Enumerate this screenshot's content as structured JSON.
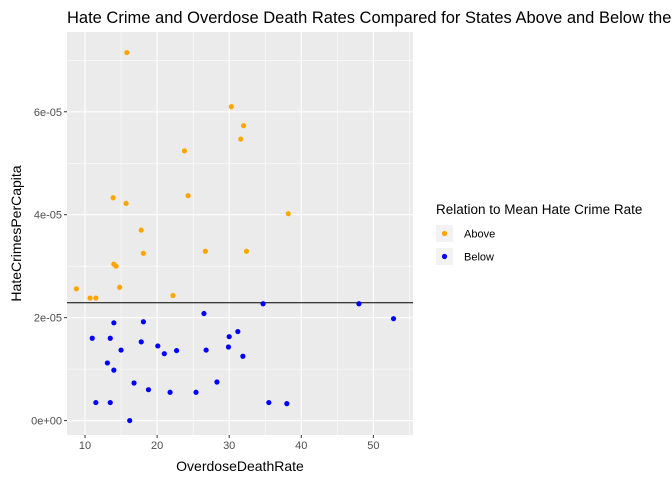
{
  "chart_data": {
    "type": "scatter",
    "title": "Hate Crime and Overdose Death Rates Compared for States Above and Below the Mean",
    "xlabel": "OverdoseDeathRate",
    "ylabel": "HateCrimesPerCapita",
    "xlim": [
      7.5,
      55.5
    ],
    "ylim": [
      -2.8e-06,
      7.55e-05
    ],
    "x_ticks": [
      10,
      20,
      30,
      40,
      50
    ],
    "x_tick_labels": [
      "10",
      "20",
      "30",
      "40",
      "50"
    ],
    "y_ticks": [
      0,
      2e-05,
      4e-05,
      6e-05
    ],
    "y_tick_labels": [
      "0e+00",
      "2e-05",
      "4e-05",
      "6e-05"
    ],
    "grid": true,
    "reference_line": {
      "y": 2.29e-05
    },
    "legend": {
      "title": "Relation to Mean Hate Crime Rate",
      "placement": "right"
    },
    "series": [
      {
        "name": "Above",
        "color": "#FFA500",
        "points": [
          [
            15.8,
            7.15e-05
          ],
          [
            30.3,
            6.1e-05
          ],
          [
            32.0,
            5.73e-05
          ],
          [
            31.6,
            5.47e-05
          ],
          [
            23.8,
            5.24e-05
          ],
          [
            24.3,
            4.37e-05
          ],
          [
            13.9,
            4.33e-05
          ],
          [
            15.7,
            4.22e-05
          ],
          [
            38.2,
            4.02e-05
          ],
          [
            17.8,
            3.7e-05
          ],
          [
            26.7,
            3.29e-05
          ],
          [
            32.4,
            3.29e-05
          ],
          [
            18.1,
            3.25e-05
          ],
          [
            14.0,
            3.04e-05
          ],
          [
            14.3,
            3e-05
          ],
          [
            8.8,
            2.56e-05
          ],
          [
            14.8,
            2.59e-05
          ],
          [
            10.7,
            2.38e-05
          ],
          [
            11.5,
            2.38e-05
          ],
          [
            22.2,
            2.43e-05
          ]
        ]
      },
      {
        "name": "Below",
        "color": "#0000FF",
        "points": [
          [
            34.7,
            2.27e-05
          ],
          [
            48.0,
            2.27e-05
          ],
          [
            52.8,
            1.98e-05
          ],
          [
            26.5,
            2.08e-05
          ],
          [
            18.1,
            1.92e-05
          ],
          [
            14.0,
            1.9e-05
          ],
          [
            31.2,
            1.73e-05
          ],
          [
            30.0,
            1.63e-05
          ],
          [
            11.0,
            1.6e-05
          ],
          [
            13.5,
            1.6e-05
          ],
          [
            17.8,
            1.53e-05
          ],
          [
            20.1,
            1.45e-05
          ],
          [
            29.9,
            1.43e-05
          ],
          [
            15.0,
            1.37e-05
          ],
          [
            22.7,
            1.36e-05
          ],
          [
            26.8,
            1.37e-05
          ],
          [
            21.0,
            1.3e-05
          ],
          [
            31.9,
            1.25e-05
          ],
          [
            13.1,
            1.12e-05
          ],
          [
            14.0,
            9.8e-06
          ],
          [
            16.8,
            7.3e-06
          ],
          [
            28.3,
            7.5e-06
          ],
          [
            18.8,
            6e-06
          ],
          [
            21.8,
            5.5e-06
          ],
          [
            25.4,
            5.5e-06
          ],
          [
            11.5,
            3.5e-06
          ],
          [
            13.5,
            3.5e-06
          ],
          [
            35.5,
            3.5e-06
          ],
          [
            38.0,
            3.3e-06
          ],
          [
            16.2,
            0.0
          ]
        ]
      }
    ]
  }
}
